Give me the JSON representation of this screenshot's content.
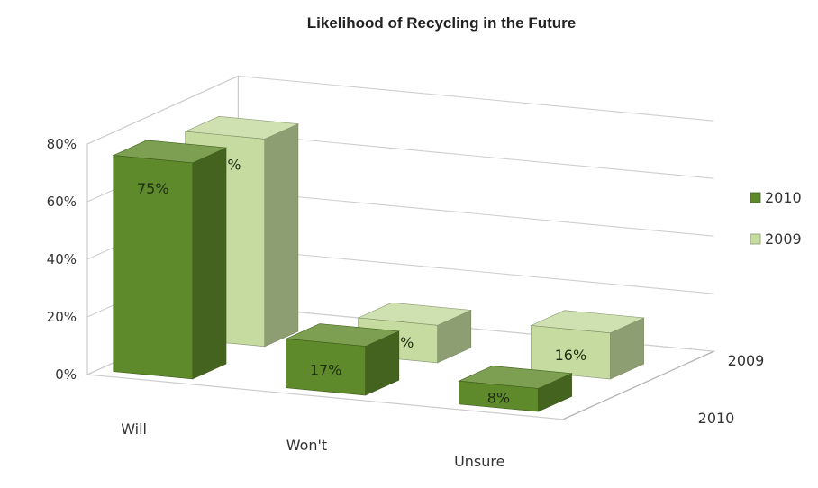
{
  "chart_data": {
    "type": "bar",
    "title": "Likelihood of Recycling in the Future",
    "categories": [
      "Will",
      "Won't",
      "Unsure"
    ],
    "series": [
      {
        "name": "2010",
        "values": [
          75,
          17,
          8
        ],
        "labels": [
          "75%",
          "17%",
          "8%"
        ],
        "color": "#5f8a2b"
      },
      {
        "name": "2009",
        "values": [
          72,
          13,
          16
        ],
        "labels": [
          "72%",
          "13%",
          "16%"
        ],
        "color": "#c5dba0"
      }
    ],
    "yticks": [
      "0%",
      "20%",
      "40%",
      "60%",
      "80%"
    ],
    "ylim": [
      0,
      80
    ],
    "depth_labels": [
      "2009",
      "2010"
    ],
    "legend": {
      "position": "right"
    },
    "grid": true
  }
}
